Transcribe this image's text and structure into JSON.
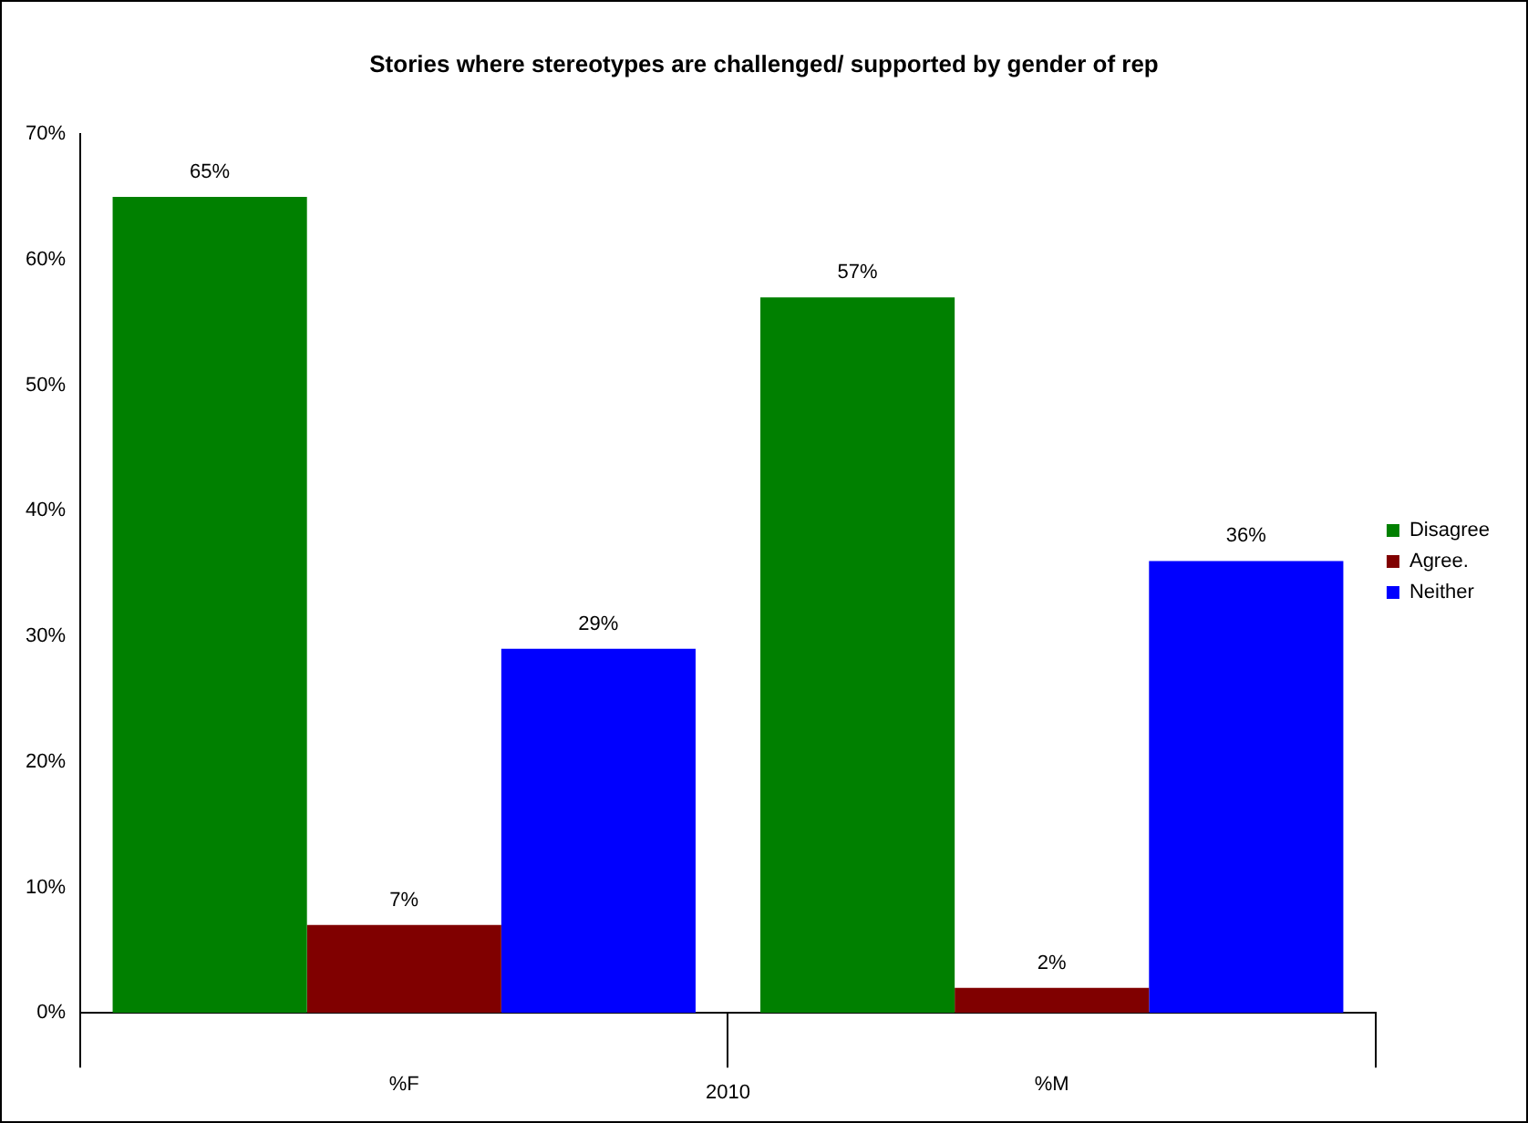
{
  "chart_data": {
    "type": "bar",
    "title": "Stories where stereotypes are challenged/ supported by gender of rep",
    "xlabel": "2010",
    "categories": [
      "%F",
      "%M"
    ],
    "series": [
      {
        "name": "Disagree",
        "color": "#008000",
        "values": [
          65,
          57
        ],
        "value_labels": [
          "65%",
          "57%"
        ]
      },
      {
        "name": "Agree.",
        "color": "#800000",
        "values": [
          7,
          2
        ],
        "value_labels": [
          "7%",
          "2%"
        ]
      },
      {
        "name": "Neither",
        "color": "#0000ff",
        "values": [
          29,
          36
        ],
        "value_labels": [
          "29%",
          "36%"
        ]
      }
    ],
    "ylim": [
      0,
      70
    ],
    "yticks": [
      {
        "value": 0,
        "label": "0%"
      },
      {
        "value": 10,
        "label": "10%"
      },
      {
        "value": 20,
        "label": "20%"
      },
      {
        "value": 30,
        "label": "30%"
      },
      {
        "value": 40,
        "label": "40%"
      },
      {
        "value": 50,
        "label": "50%"
      },
      {
        "value": 60,
        "label": "60%"
      },
      {
        "value": 70,
        "label": "70%"
      }
    ],
    "grid": false,
    "legend": "right"
  }
}
